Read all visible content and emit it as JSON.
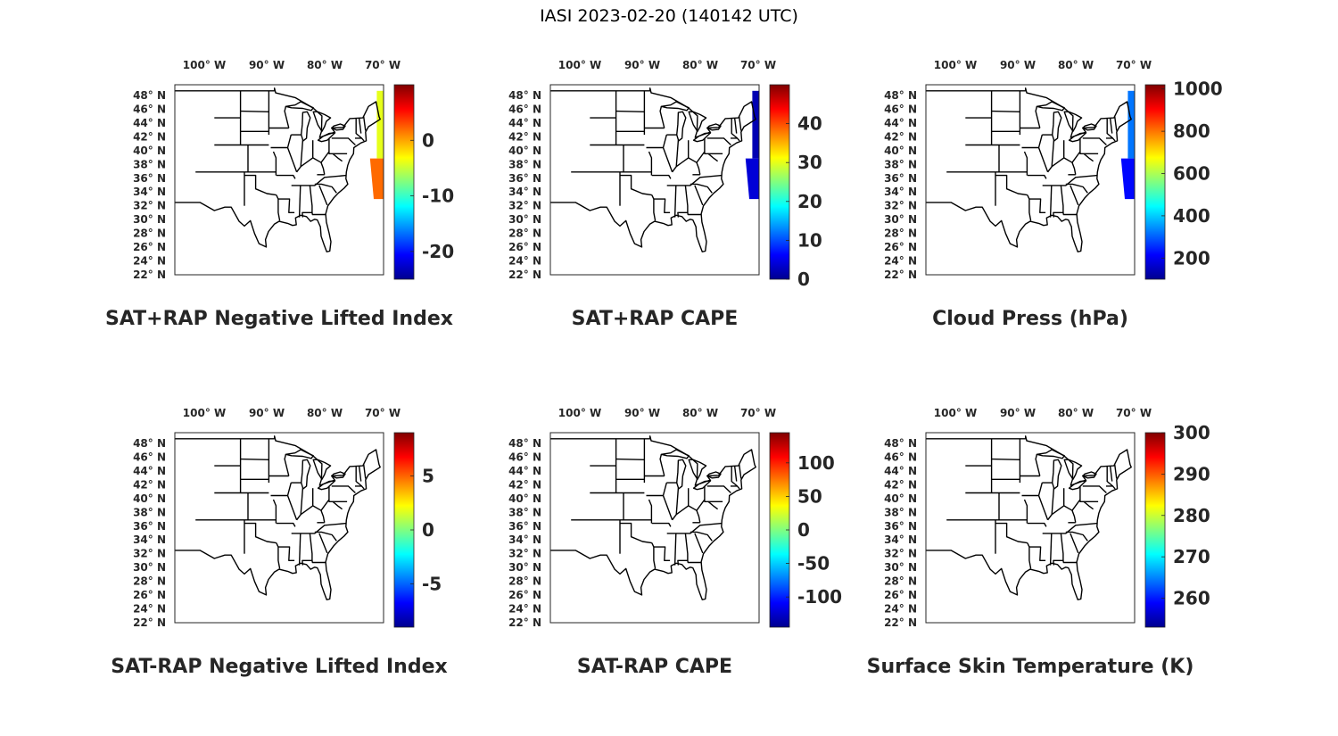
{
  "title": "IASI 2023-02-20 (140142 UTC)",
  "colors": {
    "jet": [
      "#00008f",
      "#0000ff",
      "#0080ff",
      "#00ffff",
      "#80ff80",
      "#ffff00",
      "#ff8000",
      "#ff0000",
      "#800000"
    ],
    "text": "#262626",
    "coastline": "#000000"
  },
  "lon_ticks": [
    "100° W",
    "90° W",
    "80° W",
    "70° W"
  ],
  "lat_ticks": [
    "48° N",
    "46° N",
    "44° N",
    "42° N",
    "40° N",
    "38° N",
    "36° N",
    "34° N",
    "32° N",
    "30° N",
    "28° N",
    "26° N",
    "24° N",
    "22° N"
  ],
  "panels": [
    {
      "title": "SAT+RAP Negative Lifted Index",
      "colorbar": {
        "ticks": [
          "0",
          "-10",
          "-20"
        ],
        "tick_values": [
          0,
          -10,
          -20
        ],
        "range": [
          -25,
          10
        ]
      },
      "swath": {
        "present": true,
        "north": {
          "lat": [
            39,
            49
          ],
          "color_value": -4
        },
        "south": {
          "lat": [
            33,
            39
          ],
          "color_value": 2
        }
      }
    },
    {
      "title": "SAT+RAP CAPE",
      "colorbar": {
        "ticks": [
          "40",
          "30",
          "20",
          "10",
          "0"
        ],
        "tick_values": [
          40,
          30,
          20,
          10,
          0
        ],
        "range": [
          0,
          50
        ]
      },
      "swath": {
        "present": true,
        "north": {
          "lat": [
            39,
            49
          ],
          "color_value": 2
        },
        "south": {
          "lat": [
            33,
            39
          ],
          "color_value": 4
        }
      }
    },
    {
      "title": "Cloud Press (hPa)",
      "colorbar": {
        "ticks": [
          "1000",
          "800",
          "600",
          "400",
          "200"
        ],
        "tick_values": [
          1000,
          800,
          600,
          400,
          200
        ],
        "range": [
          100,
          1020
        ]
      },
      "swath": {
        "present": true,
        "north": {
          "lat": [
            39,
            49
          ],
          "color_value": 320
        },
        "south": {
          "lat": [
            33,
            39
          ],
          "color_value": 220
        }
      }
    },
    {
      "title": "SAT-RAP Negative Lifted Index",
      "colorbar": {
        "ticks": [
          "5",
          "0",
          "-5"
        ],
        "tick_values": [
          5,
          0,
          -5
        ],
        "range": [
          -9,
          9
        ]
      },
      "swath": {
        "present": false
      }
    },
    {
      "title": "SAT-RAP CAPE",
      "colorbar": {
        "ticks": [
          "100",
          "50",
          "0",
          "-50",
          "-100"
        ],
        "tick_values": [
          100,
          50,
          0,
          -50,
          -100
        ],
        "range": [
          -145,
          145
        ]
      },
      "swath": {
        "present": false
      }
    },
    {
      "title": "Surface Skin Temperature (K)",
      "colorbar": {
        "ticks": [
          "300",
          "290",
          "280",
          "270",
          "260"
        ],
        "tick_values": [
          300,
          290,
          280,
          270,
          260
        ],
        "range": [
          253,
          300
        ]
      },
      "swath": {
        "present": false
      }
    }
  ]
}
